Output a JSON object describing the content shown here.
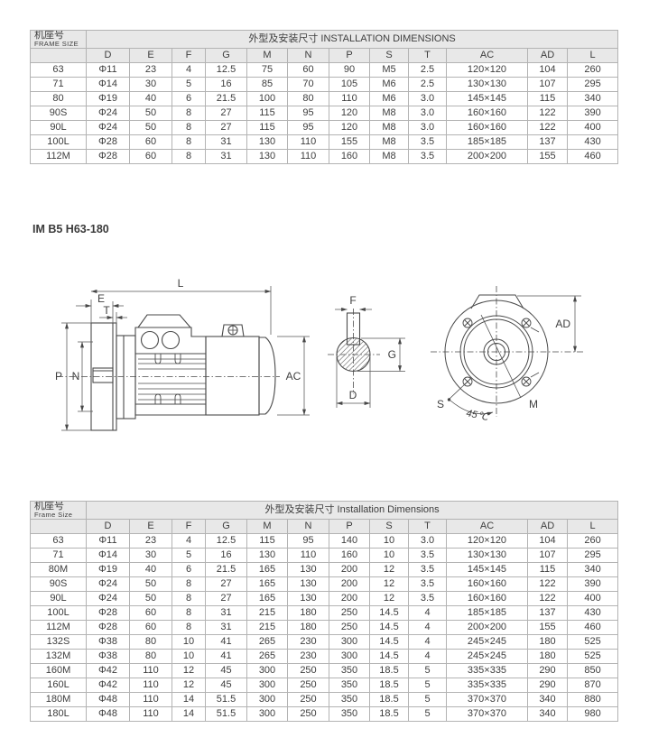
{
  "page": {
    "section_title": "IM B5 H63-180"
  },
  "tables": [
    {
      "name": "b14-dimensions",
      "frame_zh": "机座号",
      "frame_en": "FRAME SIZE",
      "span_header": "外型及安装尺寸 INSTALLATION DIMENSIONS",
      "columns": [
        "D",
        "E",
        "F",
        "G",
        "M",
        "N",
        "P",
        "S",
        "T",
        "AC",
        "AD",
        "L"
      ],
      "rows": [
        [
          "63",
          "Φ11",
          "23",
          "4",
          "12.5",
          "75",
          "60",
          "90",
          "M5",
          "2.5",
          "120×120",
          "104",
          "260"
        ],
        [
          "71",
          "Φ14",
          "30",
          "5",
          "16",
          "85",
          "70",
          "105",
          "M6",
          "2.5",
          "130×130",
          "107",
          "295"
        ],
        [
          "80",
          "Φ19",
          "40",
          "6",
          "21.5",
          "100",
          "80",
          "110",
          "M6",
          "3.0",
          "145×145",
          "115",
          "340"
        ],
        [
          "90S",
          "Φ24",
          "50",
          "8",
          "27",
          "115",
          "95",
          "120",
          "M8",
          "3.0",
          "160×160",
          "122",
          "390"
        ],
        [
          "90L",
          "Φ24",
          "50",
          "8",
          "27",
          "115",
          "95",
          "120",
          "M8",
          "3.0",
          "160×160",
          "122",
          "400"
        ],
        [
          "100L",
          "Φ28",
          "60",
          "8",
          "31",
          "130",
          "110",
          "155",
          "M8",
          "3.5",
          "185×185",
          "137",
          "430"
        ],
        [
          "112M",
          "Φ28",
          "60",
          "8",
          "31",
          "130",
          "110",
          "160",
          "M8",
          "3.5",
          "200×200",
          "155",
          "460"
        ]
      ]
    },
    {
      "name": "b5-dimensions",
      "frame_zh": "机座号",
      "frame_en": "Frame Size",
      "span_header": "外型及安装尺寸 Installation Dimensions",
      "columns": [
        "D",
        "E",
        "F",
        "G",
        "M",
        "N",
        "P",
        "S",
        "T",
        "AC",
        "AD",
        "L"
      ],
      "rows": [
        [
          "63",
          "Φ11",
          "23",
          "4",
          "12.5",
          "115",
          "95",
          "140",
          "10",
          "3.0",
          "120×120",
          "104",
          "260"
        ],
        [
          "71",
          "Φ14",
          "30",
          "5",
          "16",
          "130",
          "110",
          "160",
          "10",
          "3.5",
          "130×130",
          "107",
          "295"
        ],
        [
          "80M",
          "Φ19",
          "40",
          "6",
          "21.5",
          "165",
          "130",
          "200",
          "12",
          "3.5",
          "145×145",
          "115",
          "340"
        ],
        [
          "90S",
          "Φ24",
          "50",
          "8",
          "27",
          "165",
          "130",
          "200",
          "12",
          "3.5",
          "160×160",
          "122",
          "390"
        ],
        [
          "90L",
          "Φ24",
          "50",
          "8",
          "27",
          "165",
          "130",
          "200",
          "12",
          "3.5",
          "160×160",
          "122",
          "400"
        ],
        [
          "100L",
          "Φ28",
          "60",
          "8",
          "31",
          "215",
          "180",
          "250",
          "14.5",
          "4",
          "185×185",
          "137",
          "430"
        ],
        [
          "112M",
          "Φ28",
          "60",
          "8",
          "31",
          "215",
          "180",
          "250",
          "14.5",
          "4",
          "200×200",
          "155",
          "460"
        ],
        [
          "132S",
          "Φ38",
          "80",
          "10",
          "41",
          "265",
          "230",
          "300",
          "14.5",
          "4",
          "245×245",
          "180",
          "525"
        ],
        [
          "132M",
          "Φ38",
          "80",
          "10",
          "41",
          "265",
          "230",
          "300",
          "14.5",
          "4",
          "245×245",
          "180",
          "525"
        ],
        [
          "160M",
          "Φ42",
          "110",
          "12",
          "45",
          "300",
          "250",
          "350",
          "18.5",
          "5",
          "335×335",
          "290",
          "850"
        ],
        [
          "160L",
          "Φ42",
          "110",
          "12",
          "45",
          "300",
          "250",
          "350",
          "18.5",
          "5",
          "335×335",
          "290",
          "870"
        ],
        [
          "180M",
          "Φ48",
          "110",
          "14",
          "51.5",
          "300",
          "250",
          "350",
          "18.5",
          "5",
          "370×370",
          "340",
          "880"
        ],
        [
          "180L",
          "Φ48",
          "110",
          "14",
          "51.5",
          "300",
          "250",
          "350",
          "18.5",
          "5",
          "370×370",
          "340",
          "980"
        ]
      ]
    }
  ],
  "diagram": {
    "labels": {
      "L": "L",
      "E": "E",
      "T": "T",
      "P": "P",
      "N": "N",
      "AC": "AC",
      "F": "F",
      "G": "G",
      "D": "D",
      "AD": "AD",
      "S": "S",
      "M": "M",
      "angle": "45℃"
    }
  },
  "colors": {
    "header_bg": "#e8e8e8",
    "border": "#b3b3b3",
    "text": "#3d3d3d",
    "line": "#4a4a4a"
  }
}
